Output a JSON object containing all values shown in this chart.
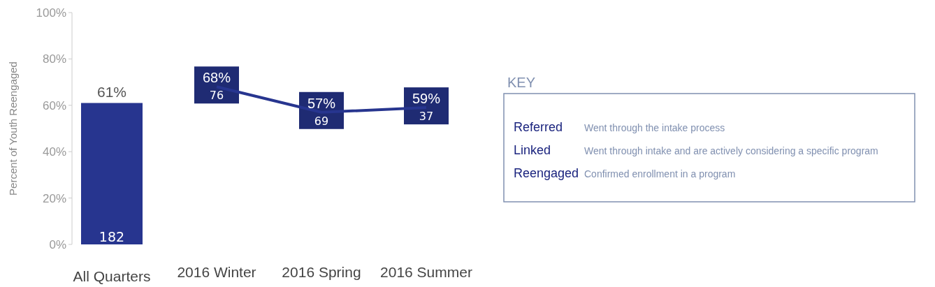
{
  "chart_data": {
    "type": "bar",
    "ylabel": "Percent of Youth Reengaged",
    "categories": [
      "All Quarters",
      "2016 Winter",
      "2016 Spring",
      "2016 Summer"
    ],
    "series": [
      {
        "color": "#27358f",
        "values": [
          61,
          null,
          null,
          null
        ],
        "value_labels": [
          "61%",
          null,
          null,
          null
        ]
      },
      {
        "type": "line",
        "color": "#27358f",
        "values": [
          null,
          68,
          57,
          59
        ],
        "value_labels": [
          null,
          "68%",
          "57%",
          "59%"
        ]
      }
    ],
    "ylim": [
      0,
      100
    ],
    "yticks": [
      {
        "value": 0,
        "label": "0%"
      },
      {
        "value": 20,
        "label": "20%"
      },
      {
        "value": 40,
        "label": "40%"
      },
      {
        "value": 60,
        "label": "60%"
      },
      {
        "value": 80,
        "label": "80%"
      },
      {
        "value": 100,
        "label": "100%"
      }
    ],
    "annotations": [
      {
        "text": "182",
        "x": "All Quarters",
        "y": 0
      },
      {
        "text": "76",
        "x": "2016 Winter",
        "y": 68
      },
      {
        "text": "69",
        "x": "2016 Spring",
        "y": 57
      },
      {
        "text": "37",
        "x": "2016 Summer",
        "y": 59
      },
      "KEY",
      "Referred",
      "Went through the intake process",
      "Linked",
      "Went through intake and are actively considering a specific program",
      "Reengaged",
      "Confirmed enrollment in a program"
    ],
    "grid": false
  }
}
